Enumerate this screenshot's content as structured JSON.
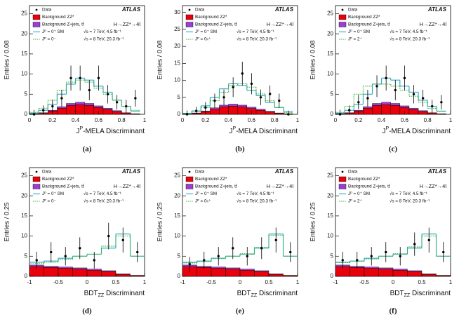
{
  "chart_data": [
    {
      "type": "histogram",
      "ylabel": "Entries / 0.08",
      "xlabel": "J",
      "xlabel_sup": "P",
      "xlabel_rest": "-MELA Discriminant",
      "panel_label": "(a)",
      "experiment": "ATLAS",
      "process": "H→ZZ*→4l",
      "energy_labels": [
        "√s = 7 TeV, 4.5 fb⁻¹",
        "√s = 8 TeV, 20.3 fb⁻¹"
      ],
      "xlim": [
        0,
        1
      ],
      "ylim": [
        0,
        27
      ],
      "xticks": [
        0,
        0.2,
        0.4,
        0.6,
        0.8,
        1
      ],
      "yticks": [
        0,
        5,
        10,
        15,
        20,
        25
      ],
      "bins": [
        0,
        0.08,
        0.16,
        0.24,
        0.32,
        0.4,
        0.48,
        0.56,
        0.64,
        0.72,
        0.8,
        0.88,
        0.96
      ],
      "series": [
        {
          "name": "Background ZZ*",
          "color": "#e8000b",
          "stack": true,
          "values": [
            0.1,
            0.3,
            0.8,
            1.5,
            2.2,
            2.4,
            2.2,
            1.7,
            1.2,
            0.7,
            0.3,
            0.1
          ]
        },
        {
          "name": "Background Z+jets, tt̄",
          "color": "#9b3fd0",
          "stack": true,
          "values": [
            0.05,
            0.1,
            0.2,
            0.4,
            0.5,
            0.6,
            0.5,
            0.4,
            0.3,
            0.2,
            0.1,
            0.05
          ]
        },
        {
          "name": "Jᴾ = 0⁺ SM",
          "color": "#2aa6c6",
          "line": "solid",
          "values": [
            0.3,
            1,
            2.5,
            5,
            7.5,
            9,
            8.5,
            7,
            5.5,
            3.5,
            2,
            0.8
          ]
        },
        {
          "name": "Jᴾ = 0⁻",
          "color": "#3cb83c",
          "line": "dotted",
          "values": [
            0.5,
            1.5,
            3.5,
            6,
            8,
            8.5,
            8,
            6.5,
            5,
            3.5,
            2,
            1
          ]
        }
      ],
      "data": {
        "name": "Data",
        "x": [
          0.04,
          0.12,
          0.2,
          0.28,
          0.36,
          0.44,
          0.52,
          0.6,
          0.68,
          0.76,
          0.84,
          0.92
        ],
        "values": [
          0,
          1,
          2,
          4,
          9,
          9,
          6,
          9,
          5,
          3,
          2,
          4
        ],
        "errors": [
          1.1,
          1.2,
          1.6,
          2.1,
          3.1,
          3.1,
          2.5,
          3.1,
          2.3,
          1.8,
          1.6,
          2.1
        ]
      }
    },
    {
      "type": "histogram",
      "ylabel": "Entries / 0.08",
      "xlabel": "J",
      "xlabel_sup": "P",
      "xlabel_rest": "-MELA Discriminant",
      "panel_label": "(b)",
      "experiment": "ATLAS",
      "process": "H→ZZ*→4l",
      "energy_labels": [
        "√s = 7 TeV, 4.5 fb⁻¹",
        "√s = 8 TeV, 20.3 fb⁻¹"
      ],
      "xlim": [
        0,
        1
      ],
      "ylim": [
        0,
        32
      ],
      "xticks": [
        0,
        0.2,
        0.4,
        0.6,
        0.8,
        1
      ],
      "yticks": [
        0,
        5,
        10,
        15,
        20,
        25,
        30
      ],
      "bins": [
        0,
        0.08,
        0.16,
        0.24,
        0.32,
        0.4,
        0.48,
        0.56,
        0.64,
        0.72,
        0.8,
        0.88,
        0.96
      ],
      "series": [
        {
          "name": "Background ZZ*",
          "color": "#e8000b",
          "stack": true,
          "values": [
            0.1,
            0.3,
            0.8,
            1.5,
            2.2,
            2.4,
            2.2,
            1.7,
            1.2,
            0.7,
            0.3,
            0.1
          ]
        },
        {
          "name": "Background Z+jets, tt̄",
          "color": "#9b3fd0",
          "stack": true,
          "values": [
            0.05,
            0.1,
            0.2,
            0.4,
            0.5,
            0.6,
            0.5,
            0.4,
            0.3,
            0.2,
            0.1,
            0.05
          ]
        },
        {
          "name": "Jᴾ = 0⁺ SM",
          "color": "#2aa6c6",
          "line": "solid",
          "values": [
            0.3,
            1,
            2.5,
            5,
            7.5,
            9,
            8.5,
            7,
            5.5,
            3.5,
            2,
            0.8
          ]
        },
        {
          "name": "Jᴾ = 0ₕ⁺",
          "color": "#3cb83c",
          "line": "dotted",
          "values": [
            0.2,
            0.8,
            2,
            4,
            6.5,
            8.5,
            9,
            8,
            6,
            4,
            2,
            0.5
          ]
        }
      ],
      "data": {
        "name": "Data",
        "x": [
          0.04,
          0.12,
          0.2,
          0.28,
          0.36,
          0.44,
          0.52,
          0.6,
          0.68,
          0.76,
          0.84,
          0.92
        ],
        "values": [
          0,
          1,
          2,
          4,
          5,
          8,
          12,
          9,
          5,
          6,
          4,
          0
        ],
        "errors": [
          1.1,
          1.2,
          1.6,
          2.1,
          2.3,
          2.9,
          3.5,
          3.1,
          2.3,
          2.5,
          2.1,
          1.1
        ]
      }
    },
    {
      "type": "histogram",
      "ylabel": "Entries / 0.08",
      "xlabel": "J",
      "xlabel_sup": "P",
      "xlabel_rest": "-MELA Discriminant",
      "panel_label": "(c)",
      "experiment": "ATLAS",
      "process": "H→ZZ*→4l",
      "energy_labels": [
        "√s = 7 TeV, 4.5 fb⁻¹",
        "√s = 8 TeV, 20.3 fb⁻¹"
      ],
      "xlim": [
        0,
        1
      ],
      "ylim": [
        0,
        27
      ],
      "xticks": [
        0,
        0.2,
        0.4,
        0.6,
        0.8,
        1
      ],
      "yticks": [
        0,
        5,
        10,
        15,
        20,
        25
      ],
      "bins": [
        0,
        0.08,
        0.16,
        0.24,
        0.32,
        0.4,
        0.48,
        0.56,
        0.64,
        0.72,
        0.8,
        0.88,
        0.96
      ],
      "series": [
        {
          "name": "Background ZZ*",
          "color": "#e8000b",
          "stack": true,
          "values": [
            0.1,
            0.3,
            0.8,
            1.5,
            2.2,
            2.4,
            2.2,
            1.7,
            1.2,
            0.7,
            0.3,
            0.1
          ]
        },
        {
          "name": "Background Z+jets, tt̄",
          "color": "#9b3fd0",
          "stack": true,
          "values": [
            0.05,
            0.1,
            0.2,
            0.4,
            0.5,
            0.6,
            0.5,
            0.4,
            0.3,
            0.2,
            0.1,
            0.05
          ]
        },
        {
          "name": "Jᴾ = 0⁺ SM",
          "color": "#2aa6c6",
          "line": "solid",
          "values": [
            0.3,
            1,
            2.5,
            5,
            7.5,
            9,
            8.5,
            7,
            5.5,
            3.5,
            2,
            0.8
          ]
        },
        {
          "name": "Jᴾ = 2⁺",
          "color": "#3cb83c",
          "line": "dotted",
          "values": [
            0.5,
            2,
            5,
            7,
            7.5,
            7.5,
            7,
            6,
            4.5,
            3,
            1.5,
            0.7
          ]
        }
      ],
      "data": {
        "name": "Data",
        "x": [
          0.04,
          0.12,
          0.2,
          0.28,
          0.36,
          0.44,
          0.52,
          0.6,
          0.68,
          0.76,
          0.84,
          0.92
        ],
        "values": [
          0,
          1,
          3,
          4,
          7,
          9,
          6,
          9,
          5,
          4,
          2,
          3
        ],
        "errors": [
          1.1,
          1.2,
          1.8,
          2.1,
          2.7,
          3.1,
          2.5,
          3.1,
          2.3,
          2.1,
          1.6,
          1.8
        ]
      }
    },
    {
      "type": "histogram",
      "ylabel": "Entries / 0.25",
      "xlabel": "BDT",
      "xlabel_sub": "ZZ",
      "xlabel_rest": " Discriminant",
      "panel_label": "(d)",
      "experiment": "ATLAS",
      "process": "H→ZZ*→4l",
      "energy_labels": [
        "√s = 7 TeV, 4.5 fb⁻¹",
        "√s = 8 TeV, 20.3 fb⁻¹"
      ],
      "xlim": [
        -1,
        1
      ],
      "ylim": [
        0,
        27
      ],
      "xticks": [
        -1,
        -0.5,
        0,
        0.5,
        1
      ],
      "yticks": [
        0,
        5,
        10,
        15,
        20,
        25
      ],
      "bins": [
        -1,
        -0.75,
        -0.5,
        -0.25,
        0,
        0.25,
        0.5,
        0.75,
        1
      ],
      "series": [
        {
          "name": "Background ZZ*",
          "color": "#e8000b",
          "stack": true,
          "values": [
            2.4,
            2.2,
            2,
            1.8,
            1.5,
            1.2,
            0.5,
            0.2
          ]
        },
        {
          "name": "Background Z+jets, tt̄",
          "color": "#9b3fd0",
          "stack": true,
          "values": [
            0.4,
            0.3,
            0.3,
            0.3,
            0.3,
            0.2,
            0.1,
            0.05
          ]
        },
        {
          "name": "Jᴾ = 0⁺ SM",
          "color": "#2aa6c6",
          "line": "solid",
          "values": [
            3.5,
            3.8,
            4.5,
            5,
            5.5,
            7,
            10.5,
            5
          ]
        },
        {
          "name": "Jᴾ = 0⁻",
          "color": "#3cb83c",
          "line": "dotted",
          "values": [
            3.2,
            3.5,
            4.2,
            5,
            5.5,
            7.5,
            10,
            5
          ]
        }
      ],
      "data": {
        "name": "Data",
        "x": [
          -0.875,
          -0.625,
          -0.375,
          -0.125,
          0.125,
          0.375,
          0.625,
          0.875
        ],
        "values": [
          4,
          6,
          5,
          7,
          4,
          10,
          9,
          6
        ],
        "errors": [
          2.1,
          2.5,
          2.3,
          2.7,
          2.1,
          3.3,
          3.1,
          2.5
        ]
      }
    },
    {
      "type": "histogram",
      "ylabel": "Entries / 0.25",
      "xlabel": "BDT",
      "xlabel_sub": "ZZ",
      "xlabel_rest": " Discriminant",
      "panel_label": "(e)",
      "experiment": "ATLAS",
      "process": "H→ZZ*→4l",
      "energy_labels": [
        "√s = 7 TeV, 4.5 fb⁻¹",
        "√s = 8 TeV, 20.3 fb⁻¹"
      ],
      "xlim": [
        -1,
        1
      ],
      "ylim": [
        0,
        27
      ],
      "xticks": [
        -1,
        -0.5,
        0,
        0.5,
        1
      ],
      "yticks": [
        0,
        5,
        10,
        15,
        20,
        25
      ],
      "bins": [
        -1,
        -0.75,
        -0.5,
        -0.25,
        0,
        0.25,
        0.5,
        0.75,
        1
      ],
      "series": [
        {
          "name": "Background ZZ*",
          "color": "#e8000b",
          "stack": true,
          "values": [
            2.4,
            2.2,
            2,
            1.8,
            1.5,
            1.2,
            0.5,
            0.2
          ]
        },
        {
          "name": "Background Z+jets, tt̄",
          "color": "#9b3fd0",
          "stack": true,
          "values": [
            0.4,
            0.3,
            0.3,
            0.3,
            0.3,
            0.2,
            0.1,
            0.05
          ]
        },
        {
          "name": "Jᴾ = 0⁺ SM",
          "color": "#2aa6c6",
          "line": "solid",
          "values": [
            3.5,
            3.8,
            4.5,
            5,
            5.5,
            7,
            10.5,
            5
          ]
        },
        {
          "name": "Jᴾ = 0ₕ⁺",
          "color": "#3cb83c",
          "line": "dotted",
          "values": [
            3.3,
            3.6,
            4.4,
            5,
            5.6,
            7.2,
            10.2,
            5
          ]
        }
      ],
      "data": {
        "name": "Data",
        "x": [
          -0.875,
          -0.625,
          -0.375,
          -0.125,
          0.125,
          0.375,
          0.625,
          0.875
        ],
        "values": [
          3,
          4,
          5,
          7,
          5,
          7,
          9,
          6
        ],
        "errors": [
          1.8,
          2.1,
          2.3,
          2.7,
          2.3,
          2.7,
          3.1,
          2.5
        ]
      }
    },
    {
      "type": "histogram",
      "ylabel": "Entries / 0.25",
      "xlabel": "BDT",
      "xlabel_sub": "ZZ",
      "xlabel_rest": " Discriminant",
      "panel_label": "(f)",
      "experiment": "ATLAS",
      "process": "H→ZZ*→4l",
      "energy_labels": [
        "√s = 7 TeV, 4.5 fb⁻¹",
        "√s = 8 TeV, 20.3 fb⁻¹"
      ],
      "xlim": [
        -1,
        1
      ],
      "ylim": [
        0,
        27
      ],
      "xticks": [
        -1,
        -0.5,
        0,
        0.5,
        1
      ],
      "yticks": [
        0,
        5,
        10,
        15,
        20,
        25
      ],
      "bins": [
        -1,
        -0.75,
        -0.5,
        -0.25,
        0,
        0.25,
        0.5,
        0.75,
        1
      ],
      "series": [
        {
          "name": "Background ZZ*",
          "color": "#e8000b",
          "stack": true,
          "values": [
            2.4,
            2.2,
            2,
            1.8,
            1.5,
            1.2,
            0.5,
            0.2
          ]
        },
        {
          "name": "Background Z+jets, tt̄",
          "color": "#9b3fd0",
          "stack": true,
          "values": [
            0.4,
            0.3,
            0.3,
            0.3,
            0.3,
            0.2,
            0.1,
            0.05
          ]
        },
        {
          "name": "Jᴾ = 0⁺ SM",
          "color": "#2aa6c6",
          "line": "solid",
          "values": [
            3.5,
            3.8,
            4.5,
            5,
            5.5,
            7,
            10.5,
            5
          ]
        },
        {
          "name": "Jᴾ = 2⁺",
          "color": "#3cb83c",
          "line": "dotted",
          "values": [
            3.4,
            3.7,
            4.3,
            5,
            5.6,
            7.3,
            10,
            5
          ]
        }
      ],
      "data": {
        "name": "Data",
        "x": [
          -0.875,
          -0.625,
          -0.375,
          -0.125,
          0.125,
          0.375,
          0.625,
          0.875
        ],
        "values": [
          4,
          4,
          5,
          6,
          5,
          8,
          9,
          6
        ],
        "errors": [
          2.1,
          2.1,
          2.3,
          2.5,
          2.3,
          2.9,
          3.1,
          2.5
        ]
      }
    }
  ]
}
